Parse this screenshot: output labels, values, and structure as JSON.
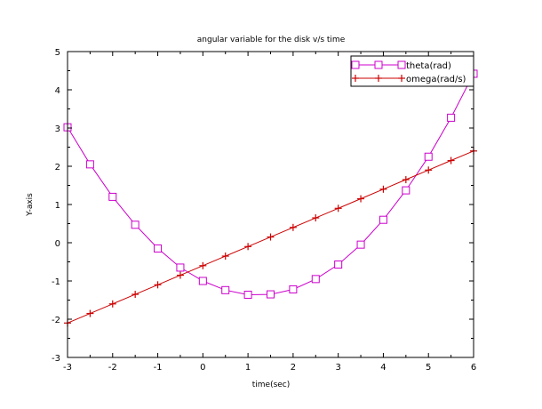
{
  "chart_data": {
    "type": "line",
    "title": "angular variable for the disk v/s time",
    "xlabel": "time(sec)",
    "ylabel": "Y-axis",
    "xlim": [
      -3,
      6
    ],
    "ylim": [
      -3,
      5
    ],
    "xticks": [
      "-3",
      "-2",
      "-1",
      "0",
      "1",
      "2",
      "3",
      "4",
      "5",
      "6"
    ],
    "yticks": [
      "-3",
      "-2",
      "-1",
      "0",
      "1",
      "2",
      "3",
      "4",
      "5"
    ],
    "grid": false,
    "legend_position": "top-right",
    "x": [
      -3,
      -2.5,
      -2,
      -1.5,
      -1,
      -0.5,
      0,
      0.5,
      1,
      1.5,
      2,
      2.5,
      3,
      3.5,
      4,
      4.5,
      5,
      5.5,
      6
    ],
    "series": [
      {
        "name": "theta(rad)",
        "color": "#cc00cc",
        "marker": "square",
        "values": [
          3.02,
          2.05,
          1.2,
          0.47,
          -0.15,
          -0.65,
          -1.0,
          -1.24,
          -1.36,
          -1.35,
          -1.22,
          -0.95,
          -0.57,
          -0.05,
          0.6,
          1.37,
          2.25,
          3.27,
          4.42
        ]
      },
      {
        "name": "omega(rad/s)",
        "color": "#cc0000",
        "marker": "plus",
        "values": [
          -2.1,
          -1.85,
          -1.6,
          -1.35,
          -1.1,
          -0.85,
          -0.6,
          -0.35,
          -0.1,
          0.15,
          0.4,
          0.65,
          0.9,
          1.15,
          1.4,
          1.65,
          1.9,
          2.15,
          2.4
        ]
      }
    ]
  }
}
